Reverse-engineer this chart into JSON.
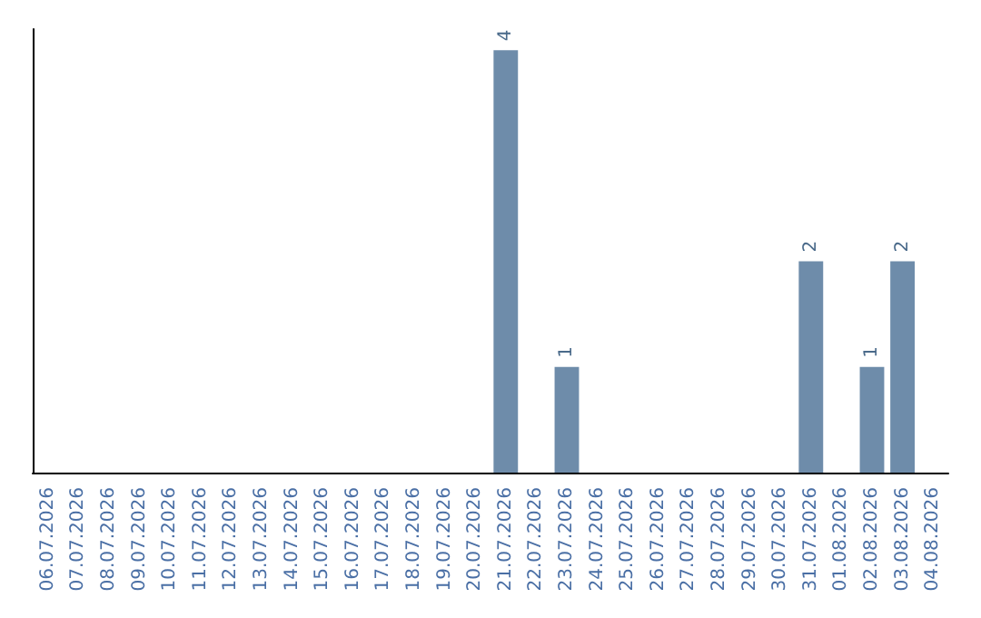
{
  "chart_data": {
    "type": "bar",
    "categories": [
      "06.07.2026",
      "07.07.2026",
      "08.07.2026",
      "09.07.2026",
      "10.07.2026",
      "11.07.2026",
      "12.07.2026",
      "13.07.2026",
      "14.07.2026",
      "15.07.2026",
      "16.07.2026",
      "17.07.2026",
      "18.07.2026",
      "19.07.2026",
      "20.07.2026",
      "21.07.2026",
      "22.07.2026",
      "23.07.2026",
      "24.07.2026",
      "25.07.2026",
      "26.07.2026",
      "27.07.2026",
      "28.07.2026",
      "29.07.2026",
      "30.07.2026",
      "31.07.2026",
      "01.08.2026",
      "02.08.2026",
      "03.08.2026",
      "04.08.2026"
    ],
    "values": [
      null,
      null,
      null,
      null,
      null,
      null,
      null,
      null,
      null,
      null,
      null,
      null,
      null,
      null,
      null,
      4,
      null,
      1,
      null,
      null,
      null,
      null,
      null,
      null,
      null,
      2,
      null,
      1,
      2,
      null
    ],
    "color": "#6e8caa",
    "grid": false,
    "data_labels": true
  }
}
